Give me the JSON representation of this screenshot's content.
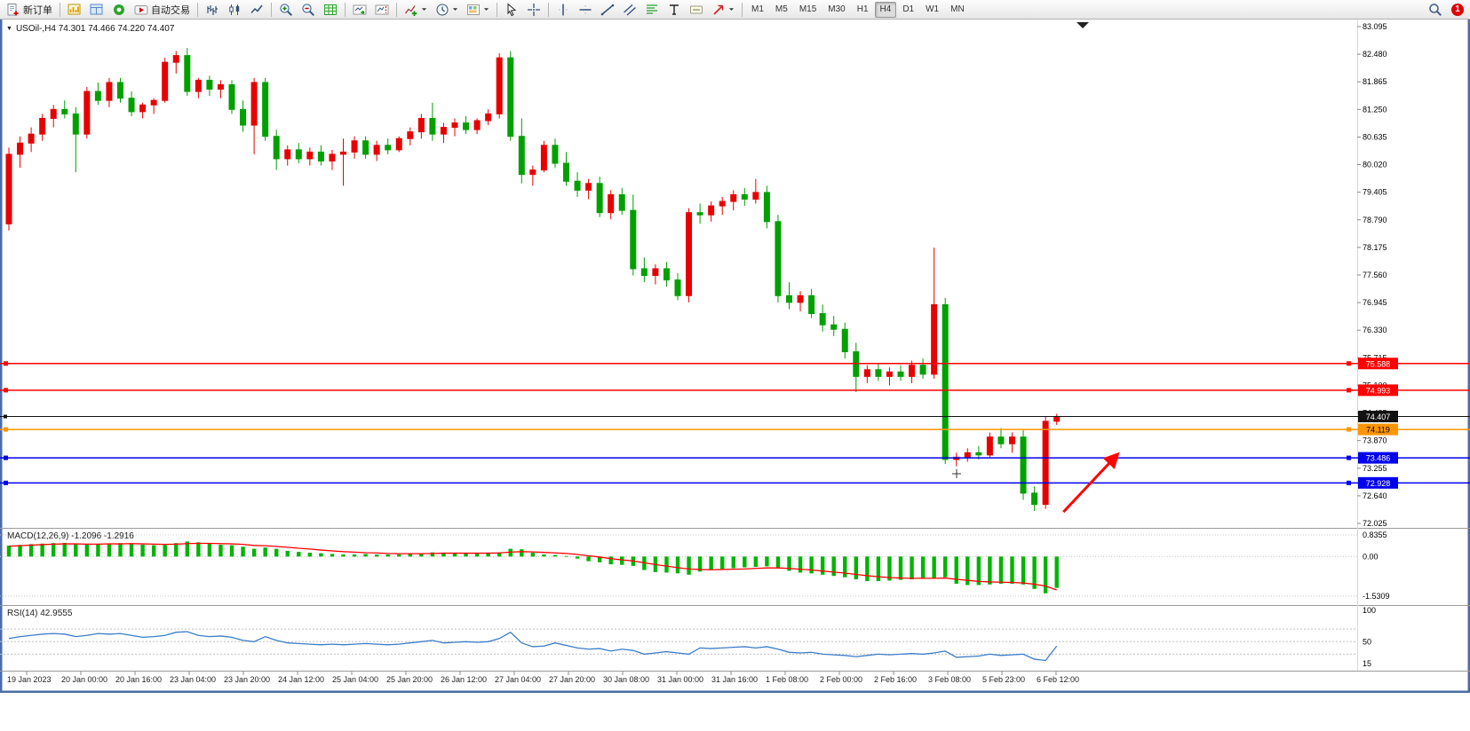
{
  "toolbar": {
    "active_timeframe": "H4",
    "notification_count": "1",
    "items": [
      {
        "name": "new-order-button",
        "icon": "new-order-icon",
        "label": "新订单"
      },
      {
        "separator": true
      },
      {
        "name": "new-chart-button",
        "icon": "new-chart-icon"
      },
      {
        "name": "profiles-button",
        "icon": "profiles-icon"
      },
      {
        "name": "market-watch-button",
        "icon": "market-watch-icon"
      },
      {
        "name": "auto-trading-button",
        "icon": "auto-trading-icon",
        "label": "自动交易"
      },
      {
        "separator": true
      },
      {
        "name": "bars-mode-button",
        "icon": "bars-chart-icon"
      },
      {
        "name": "candles-mode-button",
        "icon": "candles-chart-icon"
      },
      {
        "name": "line-mode-button",
        "icon": "line-chart-icon"
      },
      {
        "separator": true
      },
      {
        "name": "zoom-in-button",
        "icon": "zoom-in-icon"
      },
      {
        "name": "zoom-out-button",
        "icon": "zoom-out-icon"
      },
      {
        "name": "tile-windows-button",
        "icon": "grid-icon"
      },
      {
        "separator": true
      },
      {
        "name": "auto-scroll-button",
        "icon": "auto-scroll-icon"
      },
      {
        "name": "chart-shift-button",
        "icon": "chart-shift-icon"
      },
      {
        "separator": true
      },
      {
        "name": "indicators-button",
        "icon": "indicators-icon",
        "caret": true
      },
      {
        "name": "periods-button",
        "icon": "periods-icon",
        "caret": true
      },
      {
        "name": "templates-button",
        "icon": "templates-icon",
        "caret": true
      },
      {
        "separator": true
      },
      {
        "name": "cursor-button",
        "icon": "cursor-icon"
      },
      {
        "name": "crosshair-button",
        "icon": "crosshair-icon"
      },
      {
        "separator": true
      },
      {
        "name": "vertical-line-button",
        "icon": "vline-icon"
      },
      {
        "name": "horizontal-line-button",
        "icon": "hline-icon"
      },
      {
        "name": "trendline-button",
        "icon": "trendline-icon"
      },
      {
        "name": "channel-button",
        "icon": "channel-icon"
      },
      {
        "name": "fibonacci-button",
        "icon": "fibonacci-icon"
      },
      {
        "name": "text-button",
        "icon": "text-icon"
      },
      {
        "name": "label-button",
        "icon": "label-icon"
      },
      {
        "name": "arrows-button",
        "icon": "arrows-icon",
        "caret": true
      },
      {
        "separator": true
      },
      {
        "name": "tf-m1-button",
        "label": "M1",
        "tf": true
      },
      {
        "name": "tf-m5-button",
        "label": "M5",
        "tf": true
      },
      {
        "name": "tf-m15-button",
        "label": "M15",
        "tf": true
      },
      {
        "name": "tf-m30-button",
        "label": "M30",
        "tf": true
      },
      {
        "name": "tf-h1-button",
        "label": "H1",
        "tf": true
      },
      {
        "name": "tf-h4-button",
        "label": "H4",
        "tf": true
      },
      {
        "name": "tf-d1-button",
        "label": "D1",
        "tf": true
      },
      {
        "name": "tf-w1-button",
        "label": "W1",
        "tf": true
      },
      {
        "name": "tf-mn-button",
        "label": "MN",
        "tf": true
      }
    ]
  },
  "chart": {
    "symbol_ohlc_line": "USOil-,H4 74.301 74.466 74.220 74.407"
  },
  "chart_data": {
    "type": "candlestick",
    "symbol": "USOil-",
    "timeframe": "H4",
    "current_ohlc": {
      "open": 74.301,
      "high": 74.466,
      "low": 74.22,
      "close": 74.407
    },
    "price_axis_labels": [
      "83.095",
      "82.480",
      "81.865",
      "81.250",
      "80.635",
      "80.020",
      "79.405",
      "78.790",
      "78.175",
      "77.560",
      "76.945",
      "76.330",
      "75.715",
      "75.100",
      "74.485",
      "73.870",
      "73.255",
      "72.640",
      "72.025"
    ],
    "time_labels": [
      "19 Jan 2023",
      "20 Jan 00:00",
      "20 Jan 16:00",
      "23 Jan 04:00",
      "23 Jan 20:00",
      "24 Jan 12:00",
      "25 Jan 04:00",
      "25 Jan 20:00",
      "26 Jan 12:00",
      "27 Jan 04:00",
      "27 Jan 20:00",
      "30 Jan 08:00",
      "31 Jan 00:00",
      "31 Jan 16:00",
      "1 Feb 08:00",
      "2 Feb 00:00",
      "2 Feb 16:00",
      "3 Feb 08:00",
      "5 Feb 23:00",
      "6 Feb 12:00"
    ],
    "candles": [
      [
        78.7,
        80.4,
        78.55,
        80.25
      ],
      [
        80.25,
        80.65,
        79.95,
        80.5
      ],
      [
        80.5,
        80.85,
        80.3,
        80.7
      ],
      [
        80.7,
        81.15,
        80.55,
        81.05
      ],
      [
        81.05,
        81.35,
        80.85,
        81.25
      ],
      [
        81.25,
        81.45,
        81.05,
        81.15
      ],
      [
        81.15,
        81.3,
        79.85,
        80.7
      ],
      [
        80.7,
        81.75,
        80.6,
        81.65
      ],
      [
        81.65,
        81.85,
        81.35,
        81.45
      ],
      [
        81.45,
        81.95,
        81.3,
        81.85
      ],
      [
        81.85,
        81.95,
        81.4,
        81.5
      ],
      [
        81.5,
        81.65,
        81.1,
        81.2
      ],
      [
        81.2,
        81.4,
        81.05,
        81.35
      ],
      [
        81.35,
        81.5,
        81.15,
        81.45
      ],
      [
        81.45,
        82.4,
        81.4,
        82.3
      ],
      [
        82.3,
        82.55,
        82.05,
        82.45
      ],
      [
        82.45,
        82.62,
        81.55,
        81.65
      ],
      [
        81.65,
        81.95,
        81.5,
        81.9
      ],
      [
        81.9,
        82.0,
        81.55,
        81.7
      ],
      [
        81.7,
        81.9,
        81.5,
        81.8
      ],
      [
        81.8,
        81.9,
        81.15,
        81.25
      ],
      [
        81.25,
        81.45,
        80.75,
        80.9
      ],
      [
        80.9,
        81.95,
        80.25,
        81.85
      ],
      [
        81.85,
        81.95,
        80.55,
        80.65
      ],
      [
        80.65,
        80.8,
        79.9,
        80.15
      ],
      [
        80.15,
        80.45,
        80.0,
        80.35
      ],
      [
        80.35,
        80.5,
        80.05,
        80.15
      ],
      [
        80.15,
        80.4,
        80.0,
        80.3
      ],
      [
        80.3,
        80.45,
        80.0,
        80.1
      ],
      [
        80.1,
        80.35,
        79.9,
        80.25
      ],
      [
        80.25,
        80.6,
        79.55,
        80.3
      ],
      [
        80.3,
        80.65,
        80.15,
        80.55
      ],
      [
        80.55,
        80.65,
        80.15,
        80.25
      ],
      [
        80.25,
        80.55,
        80.1,
        80.45
      ],
      [
        80.45,
        80.6,
        80.25,
        80.35
      ],
      [
        80.35,
        80.65,
        80.3,
        80.6
      ],
      [
        80.6,
        80.85,
        80.45,
        80.75
      ],
      [
        80.75,
        81.15,
        80.6,
        81.05
      ],
      [
        81.05,
        81.4,
        80.55,
        80.7
      ],
      [
        80.7,
        80.95,
        80.5,
        80.85
      ],
      [
        80.85,
        81.05,
        80.65,
        80.95
      ],
      [
        80.95,
        81.1,
        80.7,
        80.8
      ],
      [
        80.8,
        81.05,
        80.7,
        81.0
      ],
      [
        81.0,
        81.25,
        80.9,
        81.15
      ],
      [
        81.15,
        82.5,
        81.05,
        82.4
      ],
      [
        82.4,
        82.55,
        80.55,
        80.65
      ],
      [
        80.65,
        81.05,
        79.6,
        79.8
      ],
      [
        79.8,
        80.0,
        79.55,
        79.9
      ],
      [
        79.9,
        80.55,
        79.85,
        80.45
      ],
      [
        80.45,
        80.6,
        79.95,
        80.05
      ],
      [
        80.05,
        80.3,
        79.55,
        79.65
      ],
      [
        79.65,
        79.85,
        79.3,
        79.45
      ],
      [
        79.45,
        79.7,
        79.25,
        79.6
      ],
      [
        79.6,
        79.75,
        78.85,
        78.95
      ],
      [
        78.95,
        79.45,
        78.8,
        79.35
      ],
      [
        79.35,
        79.5,
        78.9,
        79.0
      ],
      [
        79.0,
        79.35,
        77.55,
        77.7
      ],
      [
        77.7,
        77.95,
        77.4,
        77.55
      ],
      [
        77.55,
        77.8,
        77.35,
        77.7
      ],
      [
        77.7,
        77.85,
        77.3,
        77.45
      ],
      [
        77.45,
        77.6,
        77.0,
        77.1
      ],
      [
        77.1,
        79.05,
        76.95,
        78.95
      ],
      [
        78.95,
        79.15,
        78.7,
        78.9
      ],
      [
        78.9,
        79.2,
        78.75,
        79.1
      ],
      [
        79.1,
        79.3,
        78.9,
        79.2
      ],
      [
        79.2,
        79.45,
        79.0,
        79.35
      ],
      [
        79.35,
        79.5,
        79.1,
        79.25
      ],
      [
        79.25,
        79.7,
        79.15,
        79.4
      ],
      [
        79.4,
        79.55,
        78.6,
        78.75
      ],
      [
        78.75,
        78.9,
        76.95,
        77.1
      ],
      [
        77.1,
        77.4,
        76.8,
        76.95
      ],
      [
        76.95,
        77.2,
        76.75,
        77.1
      ],
      [
        77.1,
        77.25,
        76.6,
        76.7
      ],
      [
        76.7,
        76.9,
        76.3,
        76.45
      ],
      [
        76.45,
        76.65,
        76.2,
        76.35
      ],
      [
        76.35,
        76.5,
        75.7,
        75.85
      ],
      [
        75.85,
        76.05,
        74.95,
        75.3
      ],
      [
        75.3,
        75.55,
        75.15,
        75.45
      ],
      [
        75.45,
        75.6,
        75.2,
        75.3
      ],
      [
        75.3,
        75.5,
        75.1,
        75.4
      ],
      [
        75.4,
        75.55,
        75.2,
        75.3
      ],
      [
        75.3,
        75.65,
        75.15,
        75.55
      ],
      [
        75.55,
        75.7,
        75.25,
        75.35
      ],
      [
        75.35,
        78.17,
        75.25,
        76.9
      ],
      [
        76.9,
        77.05,
        73.35,
        73.45
      ],
      [
        73.45,
        73.6,
        73.3,
        73.5
      ],
      [
        73.5,
        73.7,
        73.4,
        73.6
      ],
      [
        73.6,
        73.75,
        73.45,
        73.55
      ],
      [
        73.55,
        74.05,
        73.5,
        73.95
      ],
      [
        73.95,
        74.15,
        73.7,
        73.8
      ],
      [
        73.8,
        74.05,
        73.6,
        73.95
      ],
      [
        73.95,
        74.1,
        72.55,
        72.7
      ],
      [
        72.7,
        72.85,
        72.3,
        72.45
      ],
      [
        72.45,
        74.4,
        72.35,
        74.3
      ],
      [
        74.301,
        74.466,
        74.22,
        74.407
      ]
    ],
    "hlines": [
      {
        "price": 75.588,
        "label": "75.588",
        "color": "#ff0000",
        "text_color": "#ffffff",
        "kind": "line"
      },
      {
        "price": 74.993,
        "label": "74.993",
        "color": "#ff0000",
        "text_color": "#ffffff",
        "kind": "line"
      },
      {
        "price": 74.407,
        "label": "74.407",
        "color": "#111111",
        "text_color": "#ffffff",
        "kind": "bid"
      },
      {
        "price": 74.119,
        "label": "74.119",
        "color": "#ff9500",
        "text_color": "#000000",
        "kind": "line"
      },
      {
        "price": 73.486,
        "label": "73.486",
        "color": "#0000ee",
        "text_color": "#ffffff",
        "kind": "line"
      },
      {
        "price": 72.928,
        "label": "72.928",
        "color": "#0000ee",
        "text_color": "#ffffff",
        "kind": "line"
      }
    ],
    "macd": {
      "label": "MACD(12,26,9) -1.2096 -1.2916",
      "axis_labels": [
        "0.8355",
        "0.00",
        "-1.5309"
      ],
      "axis_values": [
        0.8355,
        0,
        -1.5309
      ],
      "histogram": [
        0.42,
        0.45,
        0.48,
        0.5,
        0.52,
        0.53,
        0.5,
        0.46,
        0.48,
        0.5,
        0.52,
        0.5,
        0.46,
        0.44,
        0.45,
        0.52,
        0.58,
        0.55,
        0.5,
        0.46,
        0.44,
        0.38,
        0.3,
        0.35,
        0.3,
        0.22,
        0.18,
        0.15,
        0.13,
        0.1,
        0.08,
        0.08,
        0.1,
        0.08,
        0.08,
        0.08,
        0.1,
        0.13,
        0.16,
        0.15,
        0.14,
        0.14,
        0.13,
        0.14,
        0.16,
        0.3,
        0.28,
        0.15,
        0.08,
        0.06,
        0.02,
        -0.08,
        -0.18,
        -0.22,
        -0.3,
        -0.32,
        -0.36,
        -0.52,
        -0.6,
        -0.62,
        -0.65,
        -0.7,
        -0.58,
        -0.52,
        -0.48,
        -0.45,
        -0.42,
        -0.4,
        -0.38,
        -0.42,
        -0.55,
        -0.62,
        -0.65,
        -0.7,
        -0.75,
        -0.8,
        -0.88,
        -0.95,
        -0.95,
        -0.93,
        -0.9,
        -0.88,
        -0.85,
        -0.85,
        -0.8,
        -1.05,
        -1.1,
        -1.1,
        -1.08,
        -1.05,
        -1.05,
        -1.08,
        -1.25,
        -1.42,
        -1.2096
      ],
      "signal": [
        0.4,
        0.42,
        0.44,
        0.46,
        0.48,
        0.49,
        0.49,
        0.48,
        0.48,
        0.49,
        0.49,
        0.5,
        0.49,
        0.48,
        0.47,
        0.48,
        0.5,
        0.51,
        0.51,
        0.5,
        0.49,
        0.47,
        0.43,
        0.42,
        0.39,
        0.36,
        0.32,
        0.29,
        0.25,
        0.22,
        0.19,
        0.17,
        0.15,
        0.14,
        0.12,
        0.11,
        0.11,
        0.11,
        0.12,
        0.13,
        0.13,
        0.13,
        0.13,
        0.13,
        0.14,
        0.17,
        0.19,
        0.18,
        0.16,
        0.14,
        0.12,
        0.08,
        0.03,
        -0.02,
        -0.08,
        -0.13,
        -0.17,
        -0.24,
        -0.31,
        -0.37,
        -0.43,
        -0.48,
        -0.5,
        -0.51,
        -0.5,
        -0.49,
        -0.48,
        -0.46,
        -0.44,
        -0.44,
        -0.46,
        -0.49,
        -0.52,
        -0.56,
        -0.6,
        -0.64,
        -0.69,
        -0.74,
        -0.78,
        -0.81,
        -0.83,
        -0.84,
        -0.84,
        -0.84,
        -0.83,
        -0.88,
        -0.92,
        -0.96,
        -0.98,
        -0.99,
        -1.0,
        -1.02,
        -1.07,
        -1.14,
        -1.2916
      ]
    },
    "rsi": {
      "label": "RSI(14) 42.9555",
      "axis_labels": [
        "100",
        "50",
        "15"
      ],
      "axis_values": [
        100,
        50,
        15
      ],
      "levels": [
        70,
        50,
        30
      ],
      "values": [
        55,
        58,
        60,
        62,
        63,
        62,
        58,
        60,
        63,
        62,
        63,
        60,
        57,
        58,
        60,
        65,
        66,
        60,
        58,
        59,
        57,
        52,
        50,
        58,
        52,
        48,
        47,
        46,
        45,
        46,
        45,
        46,
        47,
        46,
        45,
        46,
        48,
        50,
        52,
        48,
        49,
        50,
        49,
        50,
        55,
        65,
        48,
        42,
        43,
        48,
        44,
        40,
        38,
        39,
        35,
        38,
        36,
        30,
        32,
        34,
        32,
        30,
        40,
        39,
        40,
        41,
        42,
        40,
        42,
        38,
        33,
        32,
        33,
        30,
        29,
        28,
        26,
        28,
        30,
        29,
        30,
        31,
        30,
        32,
        35,
        25,
        26,
        27,
        30,
        28,
        29,
        30,
        22,
        20,
        42.96
      ]
    },
    "annotation_arrow": {
      "from_index": 94.6,
      "from_price": 72.28,
      "to_index": 99.4,
      "to_price": 73.55,
      "color": "#ff0000"
    },
    "colors": {
      "up": "#e80000",
      "down": "#00a000",
      "macd_hist": "#00b400",
      "macd_signal": "#ff0000",
      "rsi_line": "#3b7dc8"
    }
  }
}
